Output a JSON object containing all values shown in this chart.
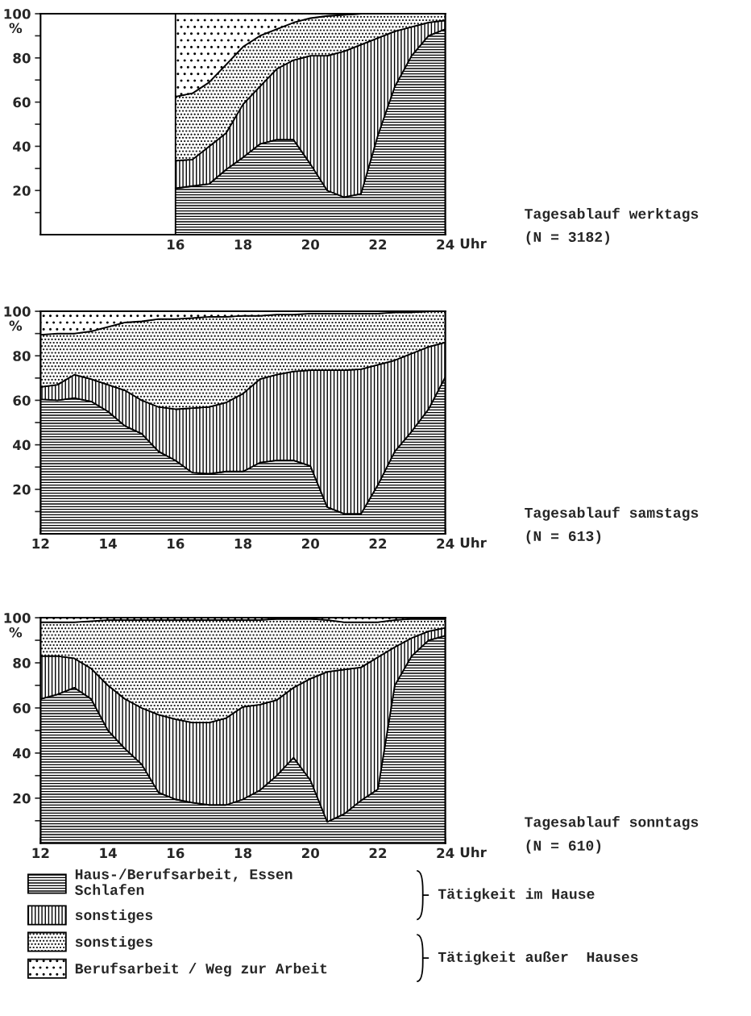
{
  "chart_data": [
    {
      "type": "area",
      "stacked": true,
      "annotations": [
        "Tagesablauf werktags",
        "(N = 3182)"
      ],
      "xlabel": "Uhr",
      "ylabel": "%",
      "x": [
        16,
        16.5,
        17,
        17.5,
        18,
        18.5,
        19,
        19.5,
        20,
        20.5,
        21,
        21.5,
        22,
        22.5,
        23,
        23.5,
        24
      ],
      "xlim": [
        12,
        24
      ],
      "xticks": [
        16,
        {
          "value": 17,
          "label": null
        },
        18,
        {
          "value": 19,
          "label": null
        },
        20,
        {
          "value": 21,
          "label": null
        },
        22,
        {
          "value": 23,
          "label": null
        },
        24
      ],
      "ylim": [
        0,
        100
      ],
      "yticks": [
        {
          "value": 10,
          "label": null
        },
        20,
        {
          "value": 30,
          "label": null
        },
        40,
        {
          "value": 50,
          "label": null
        },
        60,
        {
          "value": 70,
          "label": null
        },
        80,
        {
          "value": 90,
          "label": null
        },
        100
      ],
      "series": [
        {
          "color": "#000000",
          "values": [
            21,
            22,
            23,
            29.5,
            35,
            41,
            43,
            43,
            32,
            20,
            17,
            18.5,
            45,
            67,
            81,
            90,
            93
          ]
        },
        {
          "color": "#000000",
          "values": [
            12.5,
            12,
            17,
            16.5,
            24,
            26,
            32,
            36,
            49,
            61,
            66,
            67.5,
            44,
            25,
            13,
            6,
            4
          ]
        },
        {
          "color": "#000000",
          "values": [
            29,
            30,
            29,
            31,
            26,
            23,
            18,
            17,
            17,
            18,
            16.5,
            14,
            11,
            8,
            6,
            4,
            3
          ]
        },
        {
          "color": "#000000",
          "values": [
            37.5,
            36,
            31,
            23,
            15,
            10,
            7,
            4,
            2,
            1,
            0.5,
            0,
            0,
            0,
            0,
            0,
            0
          ]
        }
      ]
    },
    {
      "type": "area",
      "stacked": true,
      "annotations": [
        "Tagesablauf samstags",
        "(N = 613)"
      ],
      "xlabel": "Uhr",
      "ylabel": "%",
      "x": [
        12,
        12.5,
        13,
        13.5,
        14,
        14.5,
        15,
        15.5,
        16,
        16.5,
        17,
        17.5,
        18,
        18.5,
        19,
        19.5,
        20,
        20.5,
        21,
        21.5,
        22,
        22.5,
        23,
        23.5,
        24
      ],
      "xlim": [
        12,
        24
      ],
      "xticks": [
        12,
        {
          "value": 13,
          "label": null
        },
        14,
        {
          "value": 15,
          "label": null
        },
        16,
        {
          "value": 17,
          "label": null
        },
        18,
        {
          "value": 19,
          "label": null
        },
        20,
        {
          "value": 21,
          "label": null
        },
        22,
        {
          "value": 23,
          "label": null
        },
        24
      ],
      "ylim": [
        0,
        100
      ],
      "yticks": [
        {
          "value": 10,
          "label": null
        },
        20,
        {
          "value": 30,
          "label": null
        },
        40,
        {
          "value": 50,
          "label": null
        },
        60,
        {
          "value": 70,
          "label": null
        },
        80,
        {
          "value": 90,
          "label": null
        },
        100
      ],
      "series": [
        {
          "color": "#000000",
          "values": [
            60.5,
            60,
            61,
            59.5,
            55,
            48.5,
            45,
            37,
            33,
            27.5,
            27,
            28,
            28,
            32,
            33,
            33,
            30.5,
            12,
            9,
            9,
            22,
            37,
            46,
            56,
            70.5
          ]
        },
        {
          "color": "#000000",
          "values": [
            5.5,
            7,
            10.5,
            10,
            12,
            16,
            15,
            20,
            23,
            29,
            30,
            31,
            35,
            37.5,
            38.5,
            40,
            43,
            61.5,
            64.5,
            65,
            54,
            41,
            35,
            28,
            15.5
          ]
        },
        {
          "color": "#000000",
          "values": [
            23.5,
            23,
            18.5,
            21.5,
            26,
            30.5,
            35.5,
            39.5,
            40.5,
            40.5,
            40.5,
            38.5,
            35,
            28.5,
            27,
            25.5,
            25.5,
            25.5,
            25.5,
            25,
            23,
            21.5,
            18.5,
            16,
            14
          ]
        },
        {
          "color": "#000000",
          "values": [
            10.5,
            10,
            10,
            9,
            7,
            5,
            4.5,
            3.5,
            3.5,
            3,
            2.5,
            2.5,
            2,
            2,
            1.5,
            1.5,
            1,
            1,
            1,
            1,
            1,
            0.5,
            0.5,
            0,
            0
          ]
        }
      ]
    },
    {
      "type": "area",
      "stacked": true,
      "xlabel": "Uhr",
      "ylabel": "%",
      "legend": "bottom",
      "x": [
        12,
        12.5,
        13,
        13.5,
        14,
        14.5,
        15,
        15.5,
        16,
        16.5,
        17,
        17.5,
        18,
        18.5,
        19,
        19.5,
        20,
        20.5,
        21,
        21.5,
        22,
        22.5,
        23,
        23.5,
        24
      ],
      "xlim": [
        12,
        24
      ],
      "xticks": [
        12,
        {
          "value": 13,
          "label": null
        },
        14,
        {
          "value": 15,
          "label": null
        },
        16,
        {
          "value": 17,
          "label": null
        },
        18,
        {
          "value": 19,
          "label": null
        },
        20,
        {
          "value": 21,
          "label": null
        },
        22,
        {
          "value": 23,
          "label": null
        },
        24
      ],
      "ylim": [
        0,
        100
      ],
      "yticks": [
        {
          "value": 10,
          "label": null
        },
        20,
        {
          "value": 30,
          "label": null
        },
        40,
        {
          "value": 50,
          "label": null
        },
        60,
        {
          "value": 70,
          "label": null
        },
        80,
        {
          "value": 90,
          "label": null
        },
        100
      ],
      "annotations": [
        "Tagesablauf sonntags",
        "(N = 610)",
        "Tätigkeit im Hause",
        "Tätigkeit außer  Hauses"
      ],
      "series": [
        {
          "name": "Haus-/Berufsarbeit, Essen\nSchlafen",
          "color": "#000000",
          "values": [
            64,
            66,
            69,
            64,
            50,
            42,
            35,
            22.5,
            19.5,
            18,
            17,
            17,
            19.5,
            23.5,
            30,
            38,
            28,
            9.5,
            13,
            19,
            24,
            70,
            83,
            90,
            92
          ]
        },
        {
          "name": "sonstiges",
          "color": "#000000",
          "values": [
            19,
            17,
            13,
            13.5,
            20,
            22,
            25,
            34.5,
            35.5,
            35.5,
            36.5,
            38.5,
            41,
            38,
            33.5,
            31,
            45,
            66.5,
            64,
            59,
            58.5,
            17,
            8,
            4,
            3.5
          ]
        },
        {
          "name": "sonstiges",
          "color": "#000000",
          "values": [
            15,
            15,
            16,
            21,
            29,
            35,
            39,
            42,
            44,
            45.5,
            45.5,
            43.5,
            38.5,
            37.5,
            36,
            30.5,
            26.5,
            23,
            21,
            20,
            15.5,
            12,
            8.5,
            5.5,
            4
          ]
        },
        {
          "name": "Berufsarbeit / Weg zur Arbeit",
          "color": "#000000",
          "values": [
            2,
            2,
            2,
            1.5,
            1,
            1,
            1,
            1,
            1,
            1,
            1,
            1,
            1,
            1,
            0.5,
            0.5,
            0.5,
            1,
            2,
            2,
            2,
            1,
            0.5,
            0.5,
            0.5
          ]
        }
      ]
    }
  ]
}
